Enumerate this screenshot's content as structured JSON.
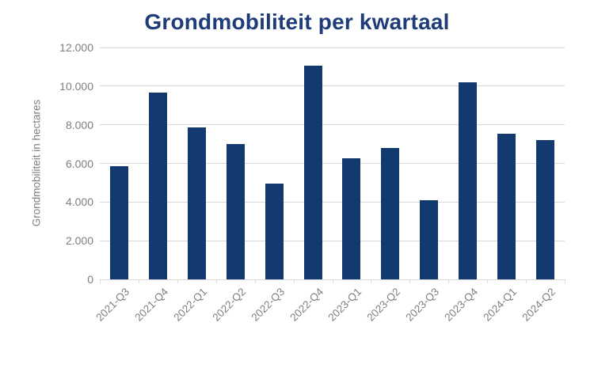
{
  "title": "Grondmobiliteit per kwartaal",
  "colors": {
    "bar": "#133A6F",
    "title": "#1E3C78",
    "axis_text": "#7F7F7F",
    "gridline": "#D9D9D9"
  },
  "chart_data": {
    "type": "bar",
    "title": "Grondmobiliteit per kwartaal",
    "xlabel": "",
    "ylabel": "Grondmobiliteit in hectares",
    "categories": [
      "2021-Q3",
      "2021-Q4",
      "2022-Q1",
      "2022-Q2",
      "2022-Q3",
      "2022-Q4",
      "2023-Q1",
      "2023-Q2",
      "2023-Q3",
      "2023-Q4",
      "2024-Q1",
      "2024-Q2"
    ],
    "values": [
      5850,
      9650,
      7850,
      7000,
      4950,
      11050,
      6250,
      6800,
      4100,
      10200,
      7550,
      7200
    ],
    "ylim": [
      0,
      12000
    ],
    "ytick_interval": 2000,
    "ytick_labels": [
      "0",
      "2.000",
      "4.000",
      "6.000",
      "8.000",
      "10.000",
      "12.000"
    ],
    "grid": true,
    "legend": false,
    "bar_color": "#133A6F"
  }
}
